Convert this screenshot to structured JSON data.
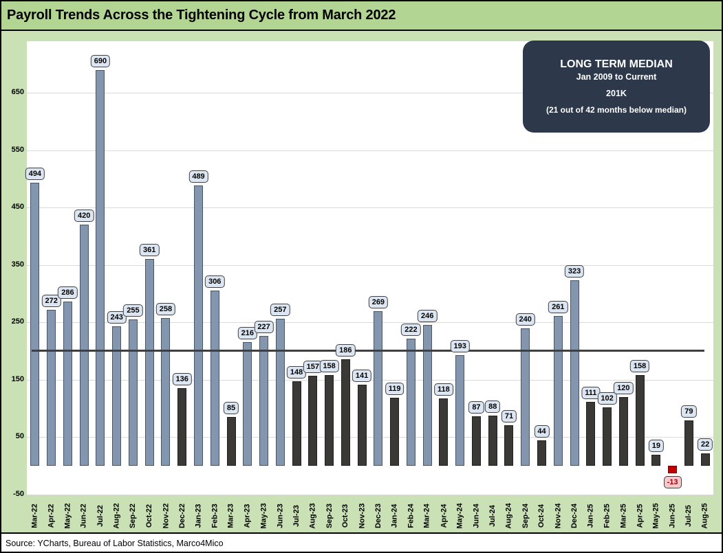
{
  "window": {
    "title": "Payroll Trends Across the Tightening Cycle from March 2022",
    "source_note": "Source: YCharts, Bureau of Labor Statistics, Marco4Mico"
  },
  "legend_box": {
    "title": "LONG TERM MEDIAN",
    "subtitle": "Jan 2009 to Current",
    "value": "201K",
    "note": "(21 out of 42 months below median)"
  },
  "chart_data": {
    "type": "bar",
    "title": "Payroll Trends Across the Tightening Cycle from March 2022",
    "categories": [
      "Mar-22",
      "Apr-22",
      "May-22",
      "Jun-22",
      "Jul-22",
      "Aug-22",
      "Sep-22",
      "Oct-22",
      "Nov-22",
      "Dec-22",
      "Jan-23",
      "Feb-23",
      "Mar-23",
      "Apr-23",
      "May-23",
      "Jun-23",
      "Jul-23",
      "Aug-23",
      "Sep-23",
      "Oct-23",
      "Nov-23",
      "Dec-23",
      "Jan-24",
      "Feb-24",
      "Mar-24",
      "Apr-24",
      "May-24",
      "Jun-24",
      "Jul-24",
      "Aug-24",
      "Sep-24",
      "Oct-24",
      "Nov-24",
      "Dec-24",
      "Jan-25",
      "Feb-25",
      "Mar-25",
      "Apr-25",
      "May-25",
      "Jun-25",
      "Jul-25",
      "Aug-25"
    ],
    "values": [
      494,
      272,
      286,
      420,
      690,
      243,
      255,
      361,
      258,
      136,
      489,
      306,
      85,
      216,
      227,
      257,
      148,
      157,
      158,
      186,
      141,
      269,
      119,
      222,
      246,
      118,
      193,
      87,
      88,
      71,
      240,
      44,
      261,
      323,
      111,
      102,
      120,
      158,
      19,
      -13,
      79,
      22
    ],
    "point_styles": [
      "above",
      "above",
      "above",
      "above",
      "above",
      "above",
      "above",
      "above",
      "above",
      "below",
      "above",
      "above",
      "below",
      "above",
      "above",
      "above",
      "below",
      "below",
      "below",
      "below",
      "below",
      "above",
      "below",
      "above",
      "above",
      "below",
      "above",
      "below",
      "below",
      "below",
      "above",
      "below",
      "above",
      "above",
      "below",
      "below",
      "below",
      "below",
      "below",
      "negative",
      "below",
      "below"
    ],
    "median_line": {
      "value": 201,
      "label": "201K"
    },
    "ylim": [
      -50,
      740
    ],
    "yticks": [
      650,
      550,
      450,
      350,
      250,
      150,
      50,
      -50
    ],
    "grid": true,
    "xlabel": "",
    "ylabel": "",
    "legend_position": "top-right",
    "colors": {
      "above_median": "#8396ae",
      "below_median": "#3b3936",
      "negative": "#c00000",
      "label_bg": "#dce6f2",
      "label_bg_negative": "#f6c9cd",
      "median_line": "#3f3f3f",
      "title_band_bg": "#b3d594",
      "chart_bg": "#c9e1b4",
      "plot_bg": "#ffffff",
      "legend_bg": "#2d394b"
    }
  }
}
